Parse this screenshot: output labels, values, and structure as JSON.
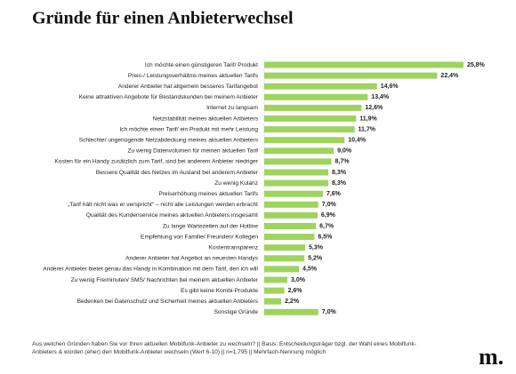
{
  "chart_data": {
    "type": "bar",
    "orientation": "horizontal",
    "title": "Gründe für einen Anbieterwechsel",
    "color": "#9fd35f",
    "categories": [
      "Ich möchte einen günstigeren Tarif/ Produkt",
      "Preis-/ Leistungsverhältnis meines aktuellen Tarifs",
      "Anderer Anbieter hat allgemein besseres Tarifangebot",
      "Keine attraktiven Angebote für Bestandskunden bei meinem Anbieter",
      "Internet zu langsam",
      "Netzstabilität meines aktuellen Anbieters",
      "Ich möchte einen Tarif/ ein Produkt mit mehr Leistung",
      "Schlechte/ ungenügende Netzabdeckung meines aktuellen Anbieters",
      "Zu wenig Datenvolumen für meinen aktuellen Tarif",
      "Kosten für ein Handy zusätzlich zum Tarif, sind bei anderem Anbieter niedriger",
      "Bessere Qualität des Netzes im Ausland bei anderem Anbieter",
      "Zu wenig Kulanz",
      "Preiserhöhung meines aktuellen Tarifs",
      "„Tarif hält nicht was er verspricht“ – nicht alle Leistungen werden erbracht",
      "Qualität des Kundenservice meines aktuellen Anbieters insgesamt",
      "Zu lange Wartezeiten auf der Hotline",
      "Empfehlung von Familie/ Freunden/ Kollegen",
      "Kostentransparenz",
      "Anderer Anbieter hat Angebot an neuesten Handys",
      "Anderer Anbieter bietet genau das Handy in Kombination mit dem Tarif, den ich will",
      "Zu wenig Freiminuten/ SMS/ Nachrichten bei meinem aktuellen Anbieter",
      "Es gibt keine Kombi-Produkte",
      "Bedenken bei Datenschutz und Sicherheit meines aktuellen Anbieters",
      "Sonstige Gründe"
    ],
    "values": [
      25.8,
      22.4,
      14.6,
      13.4,
      12.6,
      11.9,
      11.7,
      10.4,
      9.0,
      8.7,
      8.3,
      8.3,
      7.6,
      7.0,
      6.9,
      6.7,
      6.5,
      5.3,
      5.2,
      4.5,
      3.0,
      2.6,
      2.2,
      7.0
    ],
    "value_labels": [
      "25,8%",
      "22,4%",
      "14,6%",
      "13,4%",
      "12,6%",
      "11,9%",
      "11,7%",
      "10,4%",
      "9,0%",
      "8,7%",
      "8,3%",
      "8,3%",
      "7,6%",
      "7,0%",
      "6,9%",
      "6,7%",
      "6,5%",
      "5,3%",
      "5,2%",
      "4,5%",
      "3,0%",
      "2,6%",
      "2,2%",
      "7,0%"
    ],
    "footnote_lines": [
      "Aus welchen Gründen haben Sie vor Ihren aktuellen Mobilfunk-Anbieter zu wechseln? || Basis: Entscheidungsträger bzgl. der Wahl eines Mobilfunk-",
      "Anbieters & würden (eher) den Mobilfunk-Anbieter wechseln (Wert 6-10) || n=1.795 || Mehrfach-Nennung möglich"
    ],
    "logo": "m."
  }
}
